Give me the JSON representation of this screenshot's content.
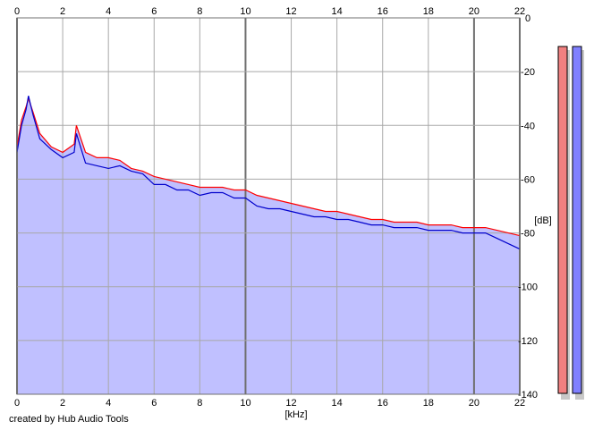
{
  "footer": {
    "credit": "created by Hub Audio Tools"
  },
  "chart_data": {
    "type": "line",
    "title": "",
    "xlabel": "[kHz]",
    "ylabel": "[dB]",
    "xlim": [
      0,
      22
    ],
    "ylim": [
      -140,
      0
    ],
    "x_ticks": [
      0,
      2,
      4,
      6,
      8,
      10,
      12,
      14,
      16,
      18,
      20,
      22
    ],
    "y_ticks": [
      0,
      -20,
      -40,
      -60,
      -80,
      -100,
      -120,
      -140
    ],
    "grid": true,
    "legend": "none",
    "series": [
      {
        "color": "#ff0000",
        "x": [
          0,
          0.2,
          0.4,
          0.5,
          0.7,
          1,
          1.5,
          2,
          2.5,
          2.6,
          3,
          3.5,
          4,
          4.5,
          5,
          5.5,
          6,
          6.5,
          7,
          7.5,
          8,
          8.5,
          9,
          9.5,
          10,
          10.5,
          11,
          11.5,
          12,
          12.5,
          13,
          13.5,
          14,
          14.5,
          15,
          15.5,
          16,
          16.5,
          17,
          17.5,
          18,
          18.5,
          19,
          19.5,
          20,
          20.5,
          21,
          21.5,
          22
        ],
        "y": [
          -48,
          -38,
          -33,
          -30,
          -35,
          -43,
          -48,
          -50,
          -47,
          -40,
          -50,
          -52,
          -52,
          -53,
          -56,
          -57,
          -59,
          -60,
          -61,
          -62,
          -63,
          -63,
          -63,
          -64,
          -64,
          -66,
          -67,
          -68,
          -69,
          -70,
          -71,
          -72,
          -72,
          -73,
          -74,
          -75,
          -75,
          -76,
          -76,
          -76,
          -77,
          -77,
          -77,
          -78,
          -78,
          -78,
          -79,
          -80,
          -81
        ]
      },
      {
        "color": "#0000cc",
        "x": [
          0,
          0.2,
          0.4,
          0.5,
          0.7,
          1,
          1.5,
          2,
          2.5,
          2.6,
          3,
          3.5,
          4,
          4.5,
          5,
          5.5,
          6,
          6.5,
          7,
          7.5,
          8,
          8.5,
          9,
          9.5,
          10,
          10.5,
          11,
          11.5,
          12,
          12.5,
          13,
          13.5,
          14,
          14.5,
          15,
          15.5,
          16,
          16.5,
          17,
          17.5,
          18,
          18.5,
          19,
          19.5,
          20,
          20.5,
          21,
          21.5,
          22
        ],
        "y": [
          -50,
          -40,
          -34,
          -29,
          -36,
          -45,
          -49,
          -52,
          -50,
          -43,
          -54,
          -55,
          -56,
          -55,
          -57,
          -58,
          -62,
          -62,
          -64,
          -64,
          -66,
          -65,
          -65,
          -67,
          -67,
          -70,
          -71,
          -71,
          -72,
          -73,
          -74,
          -74,
          -75,
          -75,
          -76,
          -77,
          -77,
          -78,
          -78,
          -78,
          -79,
          -79,
          -79,
          -80,
          -80,
          -80,
          -82,
          -84,
          -86
        ]
      }
    ],
    "fill_color": "#c0c0ff",
    "meters": [
      {
        "color": "#f08080"
      },
      {
        "color": "#8080ff"
      }
    ]
  }
}
